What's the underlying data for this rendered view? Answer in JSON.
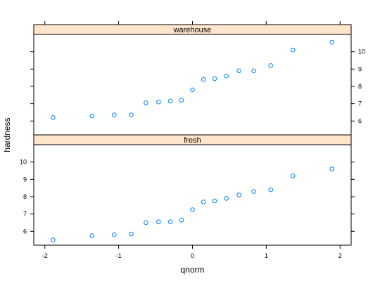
{
  "chart_data": {
    "type": "scatter",
    "xlabel": "qnorm",
    "ylabel": "hardness",
    "xlim": [
      -2.15,
      2.15
    ],
    "x_ticks": [
      -2,
      -1,
      0,
      1,
      2
    ],
    "x_tick_labels": [
      "-2",
      "-1",
      "0",
      "1",
      "2"
    ],
    "y_ticks": [
      6,
      7,
      8,
      9,
      10
    ],
    "y_tick_labels": [
      "6",
      "7",
      "8",
      "9",
      "10"
    ],
    "marker": "open-circle",
    "point_color": "#0080ff",
    "strip_color": "#ffe5cc",
    "panels": [
      {
        "strip": "warehouse",
        "ylim": [
          5.2,
          11.0
        ],
        "x": [
          -1.89,
          -1.36,
          -1.06,
          -0.83,
          -0.63,
          -0.46,
          -0.3,
          -0.15,
          0.0,
          0.15,
          0.3,
          0.46,
          0.63,
          0.83,
          1.06,
          1.36,
          1.89
        ],
        "y": [
          6.2,
          6.3,
          6.35,
          6.35,
          7.05,
          7.1,
          7.15,
          7.2,
          7.8,
          8.4,
          8.45,
          8.6,
          8.9,
          8.9,
          9.2,
          10.1,
          10.55
        ]
      },
      {
        "strip": "fresh",
        "ylim": [
          5.2,
          11.0
        ],
        "x": [
          -1.89,
          -1.36,
          -1.06,
          -0.83,
          -0.63,
          -0.46,
          -0.3,
          -0.15,
          0.0,
          0.15,
          0.3,
          0.46,
          0.63,
          0.83,
          1.06,
          1.36,
          1.89
        ],
        "y": [
          5.5,
          5.75,
          5.8,
          5.85,
          6.5,
          6.55,
          6.55,
          6.65,
          7.25,
          7.7,
          7.75,
          7.9,
          8.1,
          8.3,
          8.4,
          9.2,
          9.6
        ]
      }
    ]
  }
}
